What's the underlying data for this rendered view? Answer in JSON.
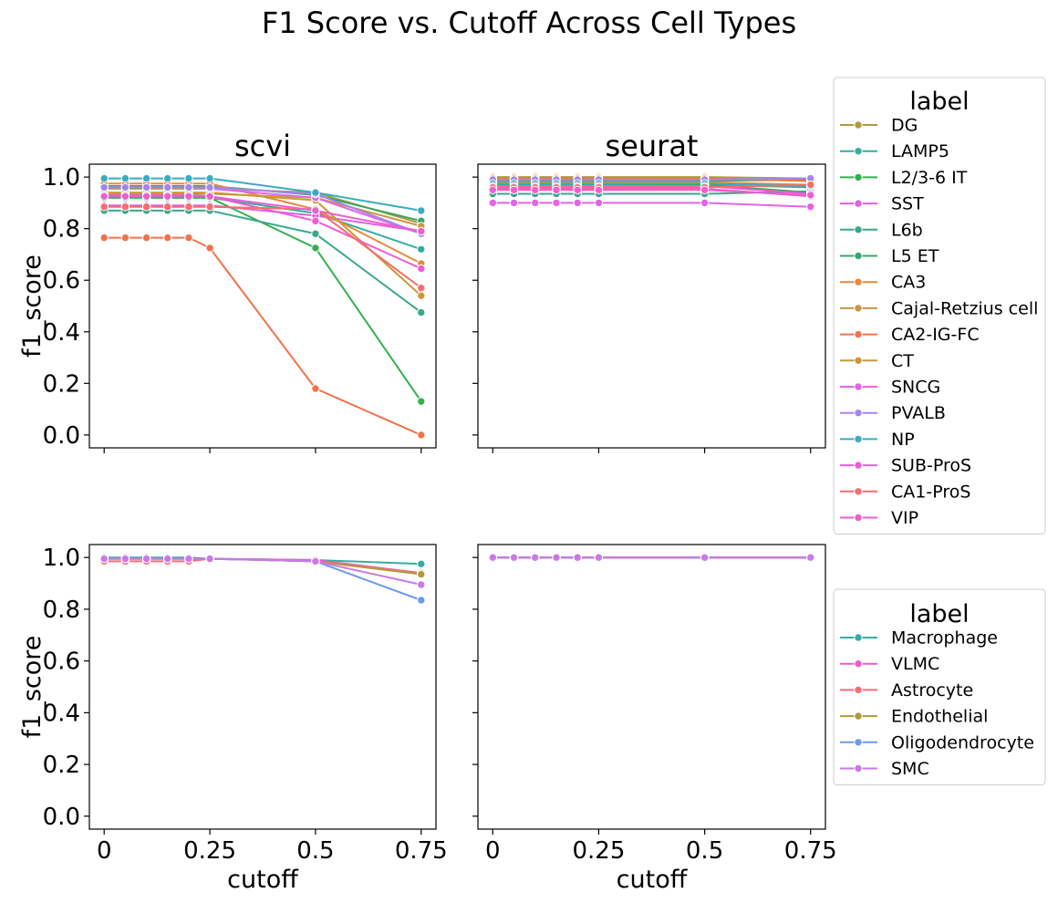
{
  "title": "F1 Score vs. Cutoff Across Cell Types",
  "x_label": "cutoff",
  "y_label": "f1_score",
  "x_ticks": [
    "0",
    "0.25",
    "0.5",
    "0.75"
  ],
  "x_tick_values": [
    0,
    0.25,
    0.5,
    0.75
  ],
  "y_ticks": [
    "0.0",
    "0.2",
    "0.4",
    "0.6",
    "0.8",
    "1.0"
  ],
  "y_tick_values": [
    0,
    0.2,
    0.4,
    0.6,
    0.8,
    1.0
  ],
  "legend_title": "label",
  "chart_data": [
    {
      "type": "line",
      "panel": "top-left",
      "title": "scvi",
      "xlabel": "",
      "ylabel": "f1_score",
      "xlim": [
        -0.035,
        0.785
      ],
      "ylim": [
        -0.05,
        1.05
      ],
      "x": [
        0,
        0.05,
        0.1,
        0.15,
        0.2,
        0.25,
        0.5,
        0.75
      ],
      "series": [
        {
          "name": "DG",
          "color": "#b09a3b",
          "values": [
            0.955,
            0.955,
            0.955,
            0.955,
            0.955,
            0.955,
            0.94,
            0.82
          ]
        },
        {
          "name": "LAMP5",
          "color": "#36ada4",
          "values": [
            0.92,
            0.92,
            0.92,
            0.92,
            0.92,
            0.92,
            0.86,
            0.72
          ]
        },
        {
          "name": "L2/3-6 IT",
          "color": "#33b04e",
          "values": [
            0.92,
            0.92,
            0.92,
            0.92,
            0.92,
            0.92,
            0.725,
            0.13
          ]
        },
        {
          "name": "SST",
          "color": "#e15fe0",
          "values": [
            0.89,
            0.89,
            0.89,
            0.89,
            0.89,
            0.89,
            0.85,
            0.79
          ]
        },
        {
          "name": "L6b",
          "color": "#3aa78b",
          "values": [
            0.87,
            0.87,
            0.87,
            0.87,
            0.87,
            0.87,
            0.78,
            0.475
          ]
        },
        {
          "name": "L5 ET",
          "color": "#34a86c",
          "values": [
            0.965,
            0.965,
            0.965,
            0.965,
            0.965,
            0.965,
            0.93,
            0.83
          ]
        },
        {
          "name": "CA3",
          "color": "#e58a3e",
          "values": [
            0.975,
            0.975,
            0.975,
            0.975,
            0.975,
            0.975,
            0.875,
            0.665
          ]
        },
        {
          "name": "Cajal-Retzius cell",
          "color": "#c49a45",
          "values": [
            0.935,
            0.935,
            0.935,
            0.935,
            0.935,
            0.935,
            0.92,
            0.81
          ]
        },
        {
          "name": "CA2-IG-FC",
          "color": "#f0734a",
          "values": [
            0.765,
            0.765,
            0.765,
            0.765,
            0.765,
            0.725,
            0.18,
            0.0
          ]
        },
        {
          "name": "CT",
          "color": "#cc9738",
          "values": [
            0.94,
            0.94,
            0.94,
            0.94,
            0.94,
            0.94,
            0.91,
            0.54
          ]
        },
        {
          "name": "SNCG",
          "color": "#e464e6",
          "values": [
            0.96,
            0.96,
            0.96,
            0.96,
            0.96,
            0.955,
            0.92,
            0.78
          ]
        },
        {
          "name": "PVALB",
          "color": "#a585ea",
          "values": [
            0.96,
            0.96,
            0.96,
            0.96,
            0.96,
            0.96,
            0.935,
            0.78
          ]
        },
        {
          "name": "NP",
          "color": "#39acc0",
          "values": [
            0.995,
            0.995,
            0.995,
            0.995,
            0.995,
            0.995,
            0.94,
            0.87
          ]
        },
        {
          "name": "SUB-ProS",
          "color": "#ee5bd7",
          "values": [
            0.93,
            0.93,
            0.93,
            0.93,
            0.93,
            0.925,
            0.83,
            0.645
          ]
        },
        {
          "name": "CA1-ProS",
          "color": "#f56d6d",
          "values": [
            0.885,
            0.885,
            0.885,
            0.885,
            0.885,
            0.885,
            0.875,
            0.57
          ]
        },
        {
          "name": "VIP",
          "color": "#ec5fd0",
          "values": [
            0.925,
            0.925,
            0.925,
            0.925,
            0.925,
            0.925,
            0.87,
            0.79
          ]
        }
      ]
    },
    {
      "type": "line",
      "panel": "top-right",
      "title": "seurat",
      "xlabel": "",
      "ylabel": "",
      "xlim": [
        -0.035,
        0.785
      ],
      "ylim": [
        -0.05,
        1.05
      ],
      "x": [
        0,
        0.05,
        0.1,
        0.15,
        0.2,
        0.25,
        0.5,
        0.75
      ],
      "series": [
        {
          "name": "DG",
          "color": "#b09a3b",
          "values": [
            1.0,
            1.0,
            1.0,
            1.0,
            1.0,
            1.0,
            1.0,
            0.995
          ]
        },
        {
          "name": "LAMP5",
          "color": "#36ada4",
          "values": [
            0.97,
            0.97,
            0.97,
            0.97,
            0.97,
            0.97,
            0.97,
            0.96
          ]
        },
        {
          "name": "L2/3-6 IT",
          "color": "#33b04e",
          "values": [
            0.975,
            0.975,
            0.975,
            0.975,
            0.975,
            0.975,
            0.97,
            0.94
          ]
        },
        {
          "name": "SST",
          "color": "#e15fe0",
          "values": [
            0.955,
            0.955,
            0.955,
            0.955,
            0.955,
            0.955,
            0.955,
            0.925
          ]
        },
        {
          "name": "L6b",
          "color": "#3aa78b",
          "values": [
            0.935,
            0.935,
            0.935,
            0.935,
            0.935,
            0.935,
            0.935,
            0.945
          ]
        },
        {
          "name": "L5 ET",
          "color": "#34a86c",
          "values": [
            0.985,
            0.985,
            0.985,
            0.985,
            0.985,
            0.985,
            0.985,
            0.99
          ]
        },
        {
          "name": "CA3",
          "color": "#e58a3e",
          "values": [
            0.995,
            0.995,
            0.995,
            0.995,
            0.995,
            0.995,
            0.995,
            0.985
          ]
        },
        {
          "name": "Cajal-Retzius cell",
          "color": "#c49a45",
          "values": [
            0.99,
            0.99,
            0.99,
            0.99,
            0.99,
            0.99,
            0.99,
            0.995
          ]
        },
        {
          "name": "CA2-IG-FC",
          "color": "#f0734a",
          "values": [
            0.995,
            0.995,
            0.995,
            0.995,
            0.995,
            0.995,
            0.995,
            0.985
          ]
        },
        {
          "name": "CT",
          "color": "#cc9738",
          "values": [
            0.98,
            0.98,
            0.98,
            0.98,
            0.98,
            0.98,
            0.98,
            0.97
          ]
        },
        {
          "name": "SNCG",
          "color": "#e464e6",
          "values": [
            0.9,
            0.9,
            0.9,
            0.9,
            0.9,
            0.9,
            0.9,
            0.885
          ]
        },
        {
          "name": "PVALB",
          "color": "#a585ea",
          "values": [
            0.99,
            0.99,
            0.99,
            0.99,
            0.99,
            0.99,
            0.99,
            0.995
          ]
        },
        {
          "name": "NP",
          "color": "#39acc0",
          "values": [
            0.975,
            0.975,
            0.975,
            0.975,
            0.975,
            0.975,
            0.975,
            0.965
          ]
        },
        {
          "name": "SUB-ProS",
          "color": "#ee5bd7",
          "values": [
            0.965,
            0.965,
            0.965,
            0.965,
            0.965,
            0.965,
            0.965,
            0.935
          ]
        },
        {
          "name": "CA1-ProS",
          "color": "#f56d6d",
          "values": [
            0.96,
            0.96,
            0.96,
            0.96,
            0.96,
            0.96,
            0.96,
            0.97
          ]
        },
        {
          "name": "VIP",
          "color": "#ec5fd0",
          "values": [
            0.95,
            0.95,
            0.95,
            0.95,
            0.95,
            0.95,
            0.95,
            0.93
          ]
        }
      ]
    },
    {
      "type": "line",
      "panel": "bottom-left",
      "title": "",
      "xlabel": "cutoff",
      "ylabel": "f1_score",
      "xlim": [
        -0.035,
        0.785
      ],
      "ylim": [
        -0.05,
        1.05
      ],
      "x": [
        0,
        0.05,
        0.1,
        0.15,
        0.2,
        0.25,
        0.5,
        0.75
      ],
      "series": [
        {
          "name": "Macrophage",
          "color": "#36ada4",
          "values": [
            1.0,
            1.0,
            1.0,
            1.0,
            1.0,
            0.995,
            0.99,
            0.975
          ]
        },
        {
          "name": "VLMC",
          "color": "#ee5bc4",
          "values": [
            0.995,
            0.995,
            0.995,
            0.995,
            0.995,
            0.995,
            0.99,
            0.94
          ]
        },
        {
          "name": "Astrocyte",
          "color": "#f56d7a",
          "values": [
            0.985,
            0.985,
            0.985,
            0.985,
            0.985,
            0.995,
            0.985,
            0.94
          ]
        },
        {
          "name": "Endothelial",
          "color": "#b09a3b",
          "values": [
            0.995,
            0.995,
            0.995,
            0.995,
            0.995,
            0.995,
            0.985,
            0.935
          ]
        },
        {
          "name": "Oligodendrocyte",
          "color": "#6d9bea",
          "values": [
            0.995,
            0.995,
            0.995,
            0.995,
            0.995,
            0.995,
            0.985,
            0.835
          ]
        },
        {
          "name": "SMC",
          "color": "#cb79e6",
          "values": [
            0.995,
            0.995,
            0.995,
            0.995,
            0.995,
            0.995,
            0.985,
            0.895
          ]
        }
      ]
    },
    {
      "type": "line",
      "panel": "bottom-right",
      "title": "",
      "xlabel": "cutoff",
      "ylabel": "",
      "xlim": [
        -0.035,
        0.785
      ],
      "ylim": [
        -0.05,
        1.05
      ],
      "x": [
        0,
        0.05,
        0.1,
        0.15,
        0.2,
        0.25,
        0.5,
        0.75
      ],
      "series": [
        {
          "name": "Macrophage",
          "color": "#36ada4",
          "values": [
            1.0,
            1.0,
            1.0,
            1.0,
            1.0,
            1.0,
            1.0,
            1.0
          ]
        },
        {
          "name": "VLMC",
          "color": "#ee5bc4",
          "values": [
            1.0,
            1.0,
            1.0,
            1.0,
            1.0,
            1.0,
            1.0,
            1.0
          ]
        },
        {
          "name": "Astrocyte",
          "color": "#f56d7a",
          "values": [
            1.0,
            1.0,
            1.0,
            1.0,
            1.0,
            1.0,
            1.0,
            1.0
          ]
        },
        {
          "name": "Endothelial",
          "color": "#b09a3b",
          "values": [
            1.0,
            1.0,
            1.0,
            1.0,
            1.0,
            1.0,
            1.0,
            1.0
          ]
        },
        {
          "name": "Oligodendrocyte",
          "color": "#6d9bea",
          "values": [
            1.0,
            1.0,
            1.0,
            1.0,
            1.0,
            1.0,
            1.0,
            1.0
          ]
        },
        {
          "name": "SMC",
          "color": "#cb79e6",
          "values": [
            1.0,
            1.0,
            1.0,
            1.0,
            1.0,
            1.0,
            1.0,
            1.0
          ]
        }
      ]
    }
  ],
  "legends": [
    {
      "title": "label",
      "placement": "right of top row",
      "items": [
        {
          "name": "DG",
          "color": "#b09a3b"
        },
        {
          "name": "LAMP5",
          "color": "#36ada4"
        },
        {
          "name": "L2/3-6 IT",
          "color": "#33b04e"
        },
        {
          "name": "SST",
          "color": "#e15fe0"
        },
        {
          "name": "L6b",
          "color": "#3aa78b"
        },
        {
          "name": "L5 ET",
          "color": "#34a86c"
        },
        {
          "name": "CA3",
          "color": "#e58a3e"
        },
        {
          "name": "Cajal-Retzius cell",
          "color": "#c49a45"
        },
        {
          "name": "CA2-IG-FC",
          "color": "#f0734a"
        },
        {
          "name": "CT",
          "color": "#cc9738"
        },
        {
          "name": "SNCG",
          "color": "#e464e6"
        },
        {
          "name": "PVALB",
          "color": "#a585ea"
        },
        {
          "name": "NP",
          "color": "#39acc0"
        },
        {
          "name": "SUB-ProS",
          "color": "#ee5bd7"
        },
        {
          "name": "CA1-ProS",
          "color": "#f56d6d"
        },
        {
          "name": "VIP",
          "color": "#ec5fd0"
        }
      ]
    },
    {
      "title": "label",
      "placement": "right of bottom row",
      "items": [
        {
          "name": "Macrophage",
          "color": "#36ada4"
        },
        {
          "name": "VLMC",
          "color": "#ee5bc4"
        },
        {
          "name": "Astrocyte",
          "color": "#f56d7a"
        },
        {
          "name": "Endothelial",
          "color": "#b09a3b"
        },
        {
          "name": "Oligodendrocyte",
          "color": "#6d9bea"
        },
        {
          "name": "SMC",
          "color": "#cb79e6"
        }
      ]
    }
  ]
}
